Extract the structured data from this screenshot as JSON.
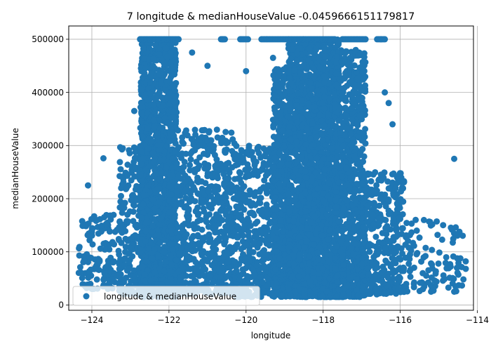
{
  "chart_data": {
    "type": "scatter",
    "title": "7 longitude & medianHouseValue -0.0459666151179817",
    "xlabel": "longitude",
    "ylabel": "medianHouseValue",
    "xlim": [
      -124.6,
      -114.1
    ],
    "ylim": [
      -10000,
      525000
    ],
    "xticks": [
      -124,
      -122,
      -120,
      -118,
      -116,
      -114
    ],
    "xtick_labels": [
      "−124",
      "−122",
      "−120",
      "−118",
      "−116",
      "−114"
    ],
    "yticks": [
      0,
      100000,
      200000,
      300000,
      400000,
      500000
    ],
    "ytick_labels": [
      "0",
      "100000",
      "200000",
      "300000",
      "400000",
      "500000"
    ],
    "grid": true,
    "legend_position": "lower-left",
    "marker_color": "#1f77b4",
    "series": [
      {
        "name": "longitude & medianHouseValue",
        "clusters": [
          {
            "x_range": [
              -124.35,
              -123.2
            ],
            "y_range": [
              30000,
              170000
            ],
            "count": 140
          },
          {
            "x_range": [
              -123.3,
              -122.5
            ],
            "y_range": [
              20000,
              300000
            ],
            "count": 260
          },
          {
            "x_range": [
              -122.75,
              -121.8
            ],
            "y_range": [
              15000,
              500000
            ],
            "count": 1500
          },
          {
            "x_range": [
              -122.0,
              -120.3
            ],
            "y_range": [
              20000,
              330000
            ],
            "count": 700
          },
          {
            "x_range": [
              -120.3,
              -119.2
            ],
            "y_range": [
              15000,
              300000
            ],
            "count": 450
          },
          {
            "x_range": [
              -119.3,
              -118.9
            ],
            "y_range": [
              15000,
              450000
            ],
            "count": 500
          },
          {
            "x_range": [
              -118.9,
              -117.6
            ],
            "y_range": [
              15000,
              500000
            ],
            "count": 2200
          },
          {
            "x_range": [
              -117.7,
              -116.9
            ],
            "y_range": [
              15000,
              480000
            ],
            "count": 900
          },
          {
            "x_range": [
              -117.0,
              -115.9
            ],
            "y_range": [
              20000,
              250000
            ],
            "count": 360
          },
          {
            "x_range": [
              -115.9,
              -114.3
            ],
            "y_range": [
              25000,
              160000
            ],
            "count": 110
          }
        ],
        "points": [
          {
            "x": -123.7,
            "y": 276000
          },
          {
            "x": -124.1,
            "y": 225000
          },
          {
            "x": -123.2,
            "y": 295000
          },
          {
            "x": -122.9,
            "y": 365000
          },
          {
            "x": -121.4,
            "y": 475000
          },
          {
            "x": -121.0,
            "y": 450000
          },
          {
            "x": -120.6,
            "y": 500000
          },
          {
            "x": -120.0,
            "y": 440000
          },
          {
            "x": -119.3,
            "y": 465000
          },
          {
            "x": -117.3,
            "y": 465000
          },
          {
            "x": -116.4,
            "y": 400000
          },
          {
            "x": -116.3,
            "y": 380000
          },
          {
            "x": -116.5,
            "y": 500000
          },
          {
            "x": -114.6,
            "y": 275000
          },
          {
            "x": -115.6,
            "y": 160000
          },
          {
            "x": -114.3,
            "y": 68000
          },
          {
            "x": -114.6,
            "y": 25000
          },
          {
            "x": -116.2,
            "y": 340000
          }
        ],
        "ceiling_value": 500001,
        "ceiling_segments": [
          [
            -122.75,
            -121.75
          ],
          [
            -120.65,
            -120.55
          ],
          [
            -120.15,
            -119.95
          ],
          [
            -119.6,
            -118.9
          ],
          [
            -118.9,
            -117.7
          ],
          [
            -117.5,
            -116.9
          ],
          [
            -116.6,
            -116.4
          ]
        ]
      }
    ]
  }
}
